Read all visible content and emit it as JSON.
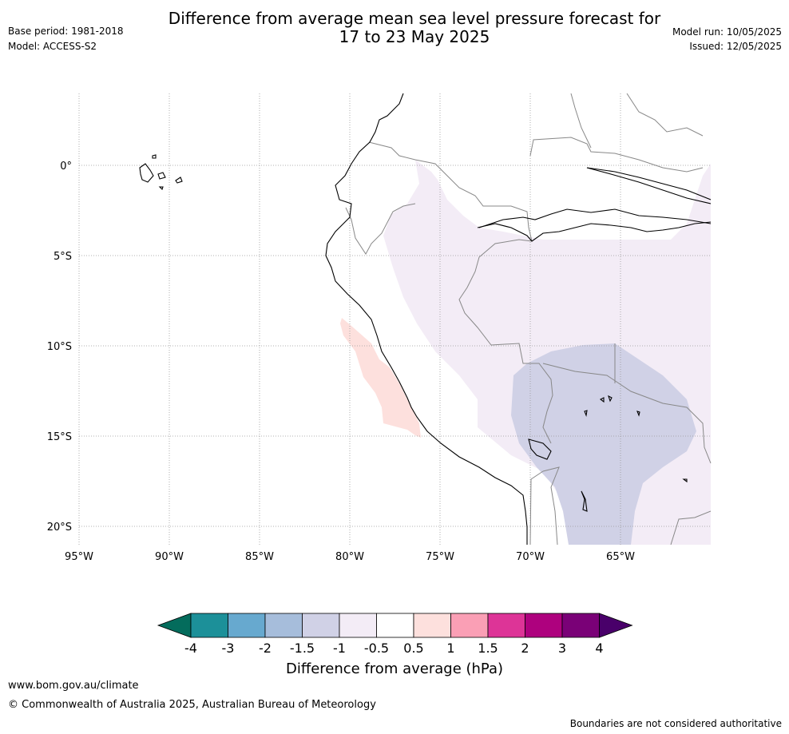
{
  "header": {
    "title_line1": "Difference from average mean sea level pressure forecast for",
    "title_line2": "17 to 23 May 2025",
    "base_period": "Base period: 1981-2018",
    "model": "Model: ACCESS-S2",
    "model_run": "Model run: 10/05/2025",
    "issued": "Issued: 12/05/2025"
  },
  "map": {
    "lat_labels": [
      "0°",
      "5°S",
      "10°S",
      "15°S",
      "20°S"
    ],
    "lon_labels": [
      "95°W",
      "90°W",
      "85°W",
      "80°W",
      "75°W",
      "70°W",
      "65°W"
    ],
    "colors": {
      "ocean": "#ffffff",
      "positive_anomaly": "#fde0dd",
      "light_negative": "#f3ecf6",
      "moderate_negative": "#d0d1e6",
      "coastline": "#000000",
      "border": "#888888"
    }
  },
  "colorbar": {
    "ticks": [
      "-4",
      "-3",
      "-2",
      "-1.5",
      "-1",
      "-0.5",
      "0.5",
      "1",
      "1.5",
      "2",
      "3",
      "4"
    ],
    "colors": [
      "#046c5c",
      "#1c9099",
      "#67a9cf",
      "#a6bddb",
      "#d0d1e6",
      "#f3ecf6",
      "#ffffff",
      "#fde0dd",
      "#fa9fb5",
      "#dd3497",
      "#ae017e",
      "#7a0177",
      "#49006a"
    ],
    "label": "Difference from average (hPa)"
  },
  "footer": {
    "url": "www.bom.gov.au/climate",
    "copyright": "© Commonwealth of Australia 2025, Australian Bureau of Meteorology",
    "disclaimer": "Boundaries are not considered authoritative"
  }
}
